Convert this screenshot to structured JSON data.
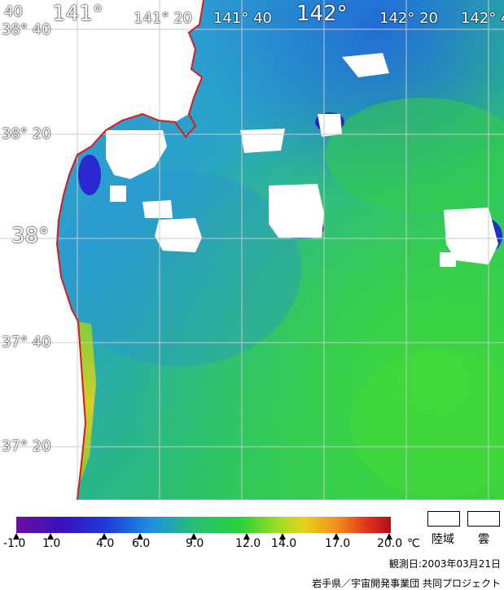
{
  "map": {
    "lon_labels": [
      "141°",
      "141° 20",
      "141° 40",
      "142°",
      "142° 20",
      "142° 4"
    ],
    "lat_labels": [
      "38° 40",
      "38° 20",
      "38°",
      "37° 40",
      "37° 20"
    ],
    "corner_label": "40"
  },
  "legend": {
    "ticks": [
      "-1.0",
      "1.0",
      "4.0",
      "6.0",
      "9.0",
      "12.0",
      "14.0",
      "17.0",
      "20.0"
    ],
    "unit": "℃",
    "land_label": "陸域",
    "cloud_label": "雲",
    "colors": [
      "#6a0fa0",
      "#1f1ec8",
      "#1e7ee0",
      "#27c070",
      "#2ad23a",
      "#d7e223",
      "#f28a1c",
      "#e0301a",
      "#b0101a"
    ]
  },
  "footer": {
    "observation": "観測日:2003年03月21日",
    "credit": "岩手県／宇宙開発事業団 共同プロジェクト"
  },
  "colors": {
    "coast": "#e01818",
    "grid": "#c8c8c8"
  }
}
